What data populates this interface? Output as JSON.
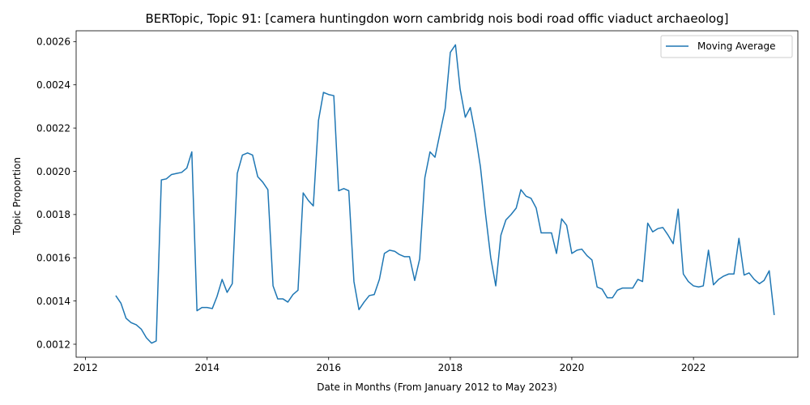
{
  "chart_data": {
    "type": "line",
    "title": "BERTopic, Topic 91: [camera huntingdon worn cambridg nois bodi road offic viaduct archaeolog]",
    "xlabel": "Date in Months (From January 2012 to May 2023)",
    "ylabel": "Topic Proportion",
    "xlim": [
      "2011-11-06",
      "2023-09-20"
    ],
    "ylim": [
      0.00114,
      0.00265
    ],
    "x_ticks": [
      {
        "value": "2012-01-01",
        "label": "2012"
      },
      {
        "value": "2014-01-01",
        "label": "2014"
      },
      {
        "value": "2016-01-01",
        "label": "2016"
      },
      {
        "value": "2018-01-01",
        "label": "2018"
      },
      {
        "value": "2020-01-01",
        "label": "2020"
      },
      {
        "value": "2022-01-01",
        "label": "2022"
      }
    ],
    "y_ticks": [
      {
        "value": 0.0012,
        "label": "0.0012"
      },
      {
        "value": 0.0014,
        "label": "0.0014"
      },
      {
        "value": 0.0016,
        "label": "0.0016"
      },
      {
        "value": 0.0018,
        "label": "0.0018"
      },
      {
        "value": 0.002,
        "label": "0.0020"
      },
      {
        "value": 0.0022,
        "label": "0.0022"
      },
      {
        "value": 0.0024,
        "label": "0.0024"
      },
      {
        "value": 0.0026,
        "label": "0.0026"
      }
    ],
    "grid": false,
    "legend_position": "top-right",
    "series": [
      {
        "name": "Moving Average",
        "color": "#1f77b4",
        "points": [
          [
            "2012-07-01",
            0.001425
          ],
          [
            "2012-08-01",
            0.00139
          ],
          [
            "2012-09-01",
            0.00132
          ],
          [
            "2012-10-01",
            0.0013
          ],
          [
            "2012-11-01",
            0.00129
          ],
          [
            "2012-12-01",
            0.00127
          ],
          [
            "2013-01-01",
            0.00123
          ],
          [
            "2013-02-01",
            0.001205
          ],
          [
            "2013-03-01",
            0.001215
          ],
          [
            "2013-04-01",
            0.00196
          ],
          [
            "2013-05-01",
            0.001965
          ],
          [
            "2013-06-01",
            0.001985
          ],
          [
            "2013-07-01",
            0.00199
          ],
          [
            "2013-08-01",
            0.001995
          ],
          [
            "2013-09-01",
            0.002015
          ],
          [
            "2013-10-01",
            0.00209
          ],
          [
            "2013-11-01",
            0.001355
          ],
          [
            "2013-12-01",
            0.00137
          ],
          [
            "2014-01-01",
            0.00137
          ],
          [
            "2014-02-01",
            0.001365
          ],
          [
            "2014-03-01",
            0.00142
          ],
          [
            "2014-04-01",
            0.0015
          ],
          [
            "2014-05-01",
            0.00144
          ],
          [
            "2014-06-01",
            0.00148
          ],
          [
            "2014-07-01",
            0.00199
          ],
          [
            "2014-08-01",
            0.002075
          ],
          [
            "2014-09-01",
            0.002085
          ],
          [
            "2014-10-01",
            0.002075
          ],
          [
            "2014-11-01",
            0.001975
          ],
          [
            "2014-12-01",
            0.00195
          ],
          [
            "2015-01-01",
            0.001915
          ],
          [
            "2015-02-01",
            0.00147
          ],
          [
            "2015-03-01",
            0.00141
          ],
          [
            "2015-04-01",
            0.00141
          ],
          [
            "2015-05-01",
            0.001395
          ],
          [
            "2015-06-01",
            0.00143
          ],
          [
            "2015-07-01",
            0.00145
          ],
          [
            "2015-08-01",
            0.0019
          ],
          [
            "2015-09-01",
            0.001865
          ],
          [
            "2015-10-01",
            0.00184
          ],
          [
            "2015-11-01",
            0.002235
          ],
          [
            "2015-12-01",
            0.002365
          ],
          [
            "2016-01-01",
            0.002355
          ],
          [
            "2016-02-01",
            0.00235
          ],
          [
            "2016-03-01",
            0.00191
          ],
          [
            "2016-04-01",
            0.00192
          ],
          [
            "2016-05-01",
            0.00191
          ],
          [
            "2016-06-01",
            0.00149
          ],
          [
            "2016-07-01",
            0.00136
          ],
          [
            "2016-08-01",
            0.001395
          ],
          [
            "2016-09-01",
            0.001425
          ],
          [
            "2016-10-01",
            0.00143
          ],
          [
            "2016-11-01",
            0.0015
          ],
          [
            "2016-12-01",
            0.00162
          ],
          [
            "2017-01-01",
            0.001635
          ],
          [
            "2017-02-01",
            0.00163
          ],
          [
            "2017-03-01",
            0.001615
          ],
          [
            "2017-04-01",
            0.001605
          ],
          [
            "2017-05-01",
            0.001605
          ],
          [
            "2017-06-01",
            0.001495
          ],
          [
            "2017-07-01",
            0.001595
          ],
          [
            "2017-08-01",
            0.00197
          ],
          [
            "2017-09-01",
            0.00209
          ],
          [
            "2017-10-01",
            0.002065
          ],
          [
            "2017-11-01",
            0.00218
          ],
          [
            "2017-12-01",
            0.00229
          ],
          [
            "2018-01-01",
            0.00255
          ],
          [
            "2018-02-01",
            0.002585
          ],
          [
            "2018-03-01",
            0.00238
          ],
          [
            "2018-04-01",
            0.00225
          ],
          [
            "2018-05-01",
            0.002295
          ],
          [
            "2018-06-01",
            0.00217
          ],
          [
            "2018-07-01",
            0.00202
          ],
          [
            "2018-08-01",
            0.0018
          ],
          [
            "2018-09-01",
            0.0016
          ],
          [
            "2018-10-01",
            0.00147
          ],
          [
            "2018-11-01",
            0.001705
          ],
          [
            "2018-12-01",
            0.001775
          ],
          [
            "2019-01-01",
            0.0018
          ],
          [
            "2019-02-01",
            0.00183
          ],
          [
            "2019-03-01",
            0.001915
          ],
          [
            "2019-04-01",
            0.001885
          ],
          [
            "2019-05-01",
            0.001875
          ],
          [
            "2019-06-01",
            0.00183
          ],
          [
            "2019-07-01",
            0.001715
          ],
          [
            "2019-08-01",
            0.001715
          ],
          [
            "2019-09-01",
            0.001715
          ],
          [
            "2019-10-01",
            0.00162
          ],
          [
            "2019-11-01",
            0.00178
          ],
          [
            "2019-12-01",
            0.00175
          ],
          [
            "2020-01-01",
            0.00162
          ],
          [
            "2020-02-01",
            0.001635
          ],
          [
            "2020-03-01",
            0.00164
          ],
          [
            "2020-04-01",
            0.00161
          ],
          [
            "2020-05-01",
            0.00159
          ],
          [
            "2020-06-01",
            0.001465
          ],
          [
            "2020-07-01",
            0.001455
          ],
          [
            "2020-08-01",
            0.001415
          ],
          [
            "2020-09-01",
            0.001415
          ],
          [
            "2020-10-01",
            0.00145
          ],
          [
            "2020-11-01",
            0.00146
          ],
          [
            "2020-12-01",
            0.00146
          ],
          [
            "2021-01-01",
            0.00146
          ],
          [
            "2021-02-01",
            0.0015
          ],
          [
            "2021-03-01",
            0.00149
          ],
          [
            "2021-04-01",
            0.00176
          ],
          [
            "2021-05-01",
            0.00172
          ],
          [
            "2021-06-01",
            0.001735
          ],
          [
            "2021-07-01",
            0.00174
          ],
          [
            "2021-08-01",
            0.001705
          ],
          [
            "2021-09-01",
            0.001665
          ],
          [
            "2021-10-01",
            0.001825
          ],
          [
            "2021-11-01",
            0.001525
          ],
          [
            "2021-12-01",
            0.00149
          ],
          [
            "2022-01-01",
            0.00147
          ],
          [
            "2022-02-01",
            0.001465
          ],
          [
            "2022-03-01",
            0.00147
          ],
          [
            "2022-04-01",
            0.001635
          ],
          [
            "2022-05-01",
            0.001475
          ],
          [
            "2022-06-01",
            0.0015
          ],
          [
            "2022-07-01",
            0.001515
          ],
          [
            "2022-08-01",
            0.001525
          ],
          [
            "2022-09-01",
            0.001525
          ],
          [
            "2022-10-01",
            0.00169
          ],
          [
            "2022-11-01",
            0.00152
          ],
          [
            "2022-12-01",
            0.00153
          ],
          [
            "2023-01-01",
            0.0015
          ],
          [
            "2023-02-01",
            0.00148
          ],
          [
            "2023-03-01",
            0.001495
          ],
          [
            "2023-04-01",
            0.00154
          ],
          [
            "2023-05-01",
            0.001335
          ]
        ]
      }
    ]
  }
}
